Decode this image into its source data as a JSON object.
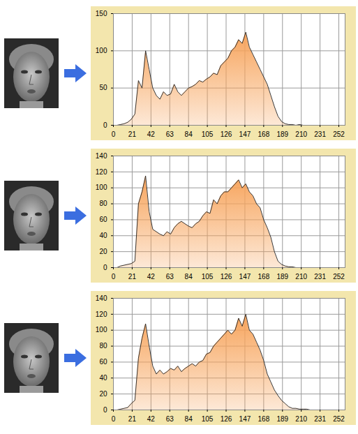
{
  "chart_data": [
    {
      "type": "area",
      "color": "#f7a45c",
      "grid": true,
      "x": [
        0,
        4,
        8,
        12,
        16,
        20,
        24,
        28,
        32,
        36,
        40,
        44,
        48,
        52,
        56,
        60,
        64,
        68,
        72,
        76,
        80,
        84,
        88,
        92,
        96,
        100,
        104,
        108,
        112,
        116,
        120,
        124,
        128,
        132,
        136,
        140,
        144,
        148,
        152,
        156,
        160,
        164,
        168,
        172,
        176,
        180,
        184,
        188,
        192,
        196,
        200,
        204,
        208,
        212,
        216,
        220,
        224,
        228,
        232,
        236,
        240,
        244,
        248,
        252
      ],
      "values": [
        0,
        0,
        1,
        2,
        4,
        8,
        15,
        60,
        50,
        100,
        75,
        50,
        40,
        35,
        45,
        40,
        42,
        55,
        45,
        40,
        45,
        50,
        52,
        55,
        60,
        58,
        62,
        65,
        70,
        68,
        80,
        85,
        90,
        100,
        105,
        115,
        110,
        125,
        105,
        95,
        85,
        75,
        65,
        55,
        40,
        25,
        12,
        5,
        2,
        1,
        1,
        0,
        1,
        0,
        0,
        0,
        0,
        0,
        0,
        0,
        0,
        0,
        0,
        0
      ],
      "xlim": [
        0,
        259
      ],
      "xticks": [
        0,
        21,
        42,
        63,
        84,
        105,
        126,
        147,
        168,
        189,
        210,
        231,
        252
      ],
      "ylim": [
        0,
        150
      ],
      "yticks": [
        0,
        50,
        100,
        150
      ]
    },
    {
      "type": "area",
      "color": "#f7a45c",
      "grid": true,
      "x": [
        0,
        4,
        8,
        12,
        16,
        20,
        24,
        28,
        32,
        36,
        40,
        44,
        48,
        52,
        56,
        60,
        64,
        68,
        72,
        76,
        80,
        84,
        88,
        92,
        96,
        100,
        104,
        108,
        112,
        116,
        120,
        124,
        128,
        132,
        136,
        140,
        144,
        148,
        152,
        156,
        160,
        164,
        168,
        172,
        176,
        180,
        184,
        188,
        192,
        196,
        200,
        204,
        208,
        212,
        216,
        220,
        224,
        228,
        232,
        236,
        240,
        244,
        248,
        252
      ],
      "values": [
        0,
        0,
        2,
        3,
        4,
        5,
        8,
        80,
        95,
        115,
        70,
        48,
        45,
        42,
        40,
        45,
        42,
        50,
        55,
        58,
        55,
        52,
        50,
        55,
        58,
        65,
        70,
        68,
        85,
        80,
        90,
        95,
        95,
        100,
        105,
        110,
        100,
        105,
        95,
        90,
        80,
        75,
        60,
        50,
        38,
        20,
        8,
        4,
        2,
        1,
        1,
        0,
        0,
        0,
        0,
        0,
        0,
        0,
        0,
        0,
        0,
        0,
        0,
        0
      ],
      "xlim": [
        0,
        259
      ],
      "xticks": [
        0,
        21,
        42,
        63,
        84,
        105,
        126,
        147,
        168,
        189,
        210,
        231,
        252
      ],
      "ylim": [
        0,
        140
      ],
      "yticks": [
        0,
        20,
        40,
        60,
        80,
        100,
        120,
        140
      ]
    },
    {
      "type": "area",
      "color": "#f7a45c",
      "grid": true,
      "x": [
        0,
        4,
        8,
        12,
        16,
        20,
        24,
        28,
        32,
        36,
        40,
        44,
        48,
        52,
        56,
        60,
        64,
        68,
        72,
        76,
        80,
        84,
        88,
        92,
        96,
        100,
        104,
        108,
        112,
        116,
        120,
        124,
        128,
        132,
        136,
        140,
        144,
        148,
        152,
        156,
        160,
        164,
        168,
        172,
        176,
        180,
        184,
        188,
        192,
        196,
        200,
        204,
        208,
        212,
        216,
        220,
        224,
        228,
        232,
        236,
        240,
        244,
        248,
        252
      ],
      "values": [
        0,
        0,
        1,
        2,
        3,
        8,
        12,
        65,
        90,
        108,
        80,
        55,
        45,
        50,
        45,
        48,
        52,
        50,
        55,
        48,
        52,
        55,
        58,
        55,
        60,
        62,
        70,
        72,
        80,
        85,
        90,
        95,
        100,
        95,
        100,
        115,
        105,
        120,
        100,
        95,
        85,
        75,
        62,
        45,
        35,
        25,
        18,
        12,
        8,
        4,
        2,
        2,
        1,
        1,
        1,
        0,
        0,
        0,
        0,
        0,
        0,
        0,
        0,
        0
      ],
      "xlim": [
        0,
        259
      ],
      "xticks": [
        0,
        21,
        42,
        63,
        84,
        105,
        126,
        147,
        168,
        189,
        210,
        231,
        252
      ],
      "ylim": [
        0,
        140
      ],
      "yticks": [
        0,
        20,
        40,
        60,
        80,
        100,
        120,
        140
      ]
    }
  ]
}
